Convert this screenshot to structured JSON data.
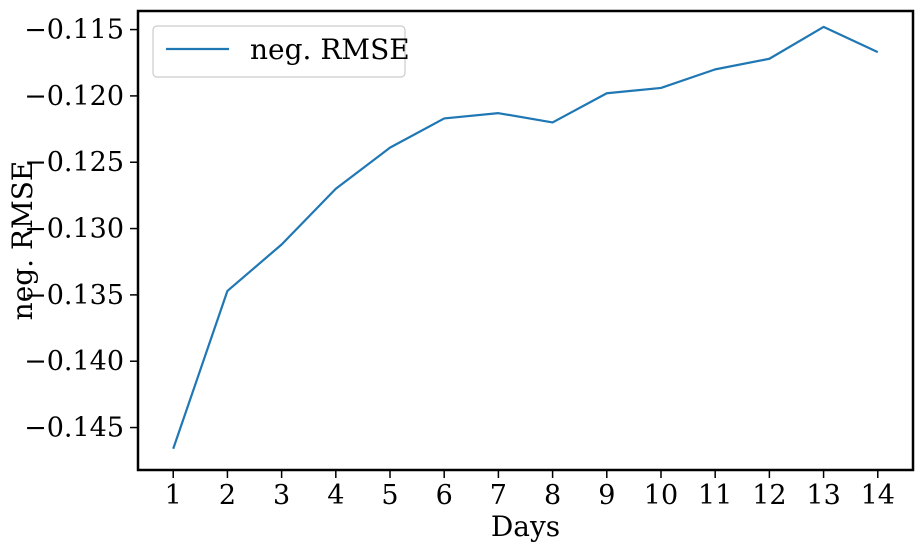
{
  "chart_data": {
    "type": "line",
    "title": "",
    "xlabel": "Days",
    "ylabel": "neg. RMSE",
    "x": [
      1,
      2,
      3,
      4,
      5,
      6,
      7,
      8,
      9,
      10,
      11,
      12,
      13,
      14
    ],
    "series": [
      {
        "name": "neg. RMSE",
        "color": "#1f77b4",
        "values": [
          -0.1466,
          -0.1347,
          -0.1312,
          -0.127,
          -0.1239,
          -0.1217,
          -0.1213,
          -0.122,
          -0.1198,
          -0.1194,
          -0.118,
          -0.1172,
          -0.1148,
          -0.1167
        ]
      }
    ],
    "xlim": [
      0.35,
      14.65
    ],
    "ylim": [
      -0.1482,
      -0.1136
    ],
    "xticks": [
      1,
      2,
      3,
      4,
      5,
      6,
      7,
      8,
      9,
      10,
      11,
      12,
      13,
      14
    ],
    "xtick_labels": [
      "1",
      "2",
      "3",
      "4",
      "5",
      "6",
      "7",
      "8",
      "9",
      "10",
      "11",
      "12",
      "13",
      "14"
    ],
    "yticks": [
      -0.145,
      -0.14,
      -0.135,
      -0.13,
      -0.125,
      -0.12,
      -0.115
    ],
    "ytick_labels": [
      "−0.145",
      "−0.140",
      "−0.135",
      "−0.130",
      "−0.125",
      "−0.120",
      "−0.115"
    ],
    "grid": false,
    "legend_position": "top-left"
  }
}
